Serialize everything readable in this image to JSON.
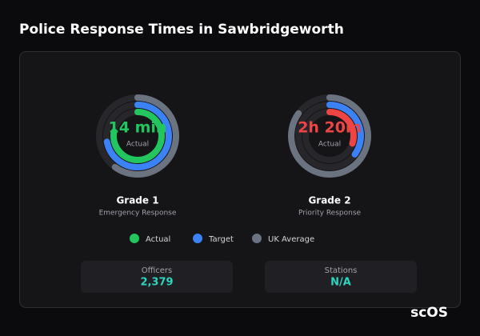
{
  "header": {
    "title": "Police Response Times in Sawbridgeworth"
  },
  "legend": [
    {
      "name": "Actual",
      "color": "#22c55e"
    },
    {
      "name": "Target",
      "color": "#3b82f6"
    },
    {
      "name": "UK Average",
      "color": "#6b7280"
    }
  ],
  "gauges": [
    {
      "value": "14 min",
      "value_label": "Actual",
      "name": "Grade 1",
      "subtitle": "Emergency Response",
      "color": "#22c55e",
      "rings": [
        60,
        72,
        78
      ]
    },
    {
      "value": "2h 20m",
      "value_label": "Actual",
      "name": "Grade 2",
      "subtitle": "Priority Response",
      "color": "#ef4444",
      "rings": [
        85,
        35,
        30
      ]
    }
  ],
  "stats": [
    {
      "label": "Officers",
      "value": "2,379"
    },
    {
      "label": "Stations",
      "value": "N/A"
    }
  ],
  "logo": "scOS"
}
